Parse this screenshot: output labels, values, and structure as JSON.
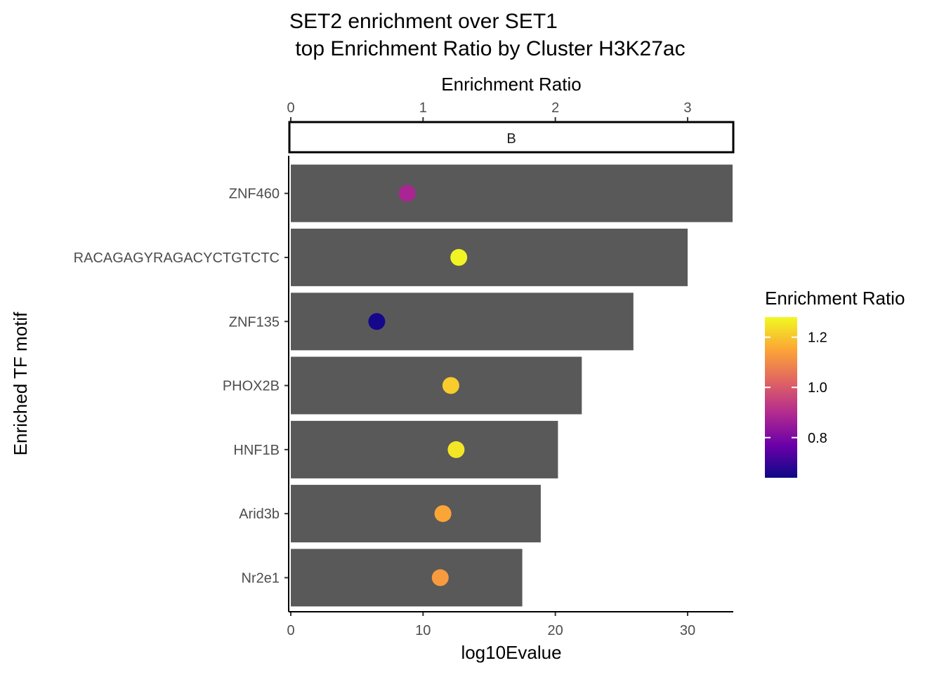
{
  "chart_data": {
    "type": "bar",
    "title_line1": "SET2 enrichment over SET1",
    "title_line2": " top Enrichment Ratio by Cluster H3K27ac",
    "facet_label": "B",
    "xlabel": "log10Evalue",
    "x2label": "Enrichment Ratio",
    "ylabel": "Enriched TF motif",
    "xlim": [
      0,
      33.4
    ],
    "xticks": [
      "0",
      "10",
      "20",
      "30"
    ],
    "xtick_values": [
      0,
      10,
      20,
      30
    ],
    "x2lim": [
      0,
      3.34
    ],
    "x2ticks": [
      "0",
      "1",
      "2",
      "3"
    ],
    "x2tick_values": [
      0,
      1,
      2,
      3
    ],
    "categories": [
      "ZNF460",
      "RACAGAGYRAGACYCTGTCTC",
      "ZNF135",
      "PHOX2B",
      "HNF1B",
      "Arid3b",
      "Nr2e1"
    ],
    "bar_values": [
      33.4,
      30.0,
      25.9,
      22.0,
      20.2,
      18.9,
      17.5
    ],
    "point_values": [
      0.88,
      1.27,
      0.65,
      1.21,
      1.25,
      1.15,
      1.13
    ],
    "bar_color": "#595959",
    "legend": {
      "title": "Enrichment Ratio",
      "range": [
        0.64,
        1.28
      ],
      "ticks": [
        "0.8",
        "1.0",
        "1.2"
      ],
      "tick_values": [
        0.8,
        1.0,
        1.2
      ],
      "colormap": [
        "#0d0887",
        "#6a00a8",
        "#b12a90",
        "#e16462",
        "#fca636",
        "#f0f921"
      ]
    }
  }
}
